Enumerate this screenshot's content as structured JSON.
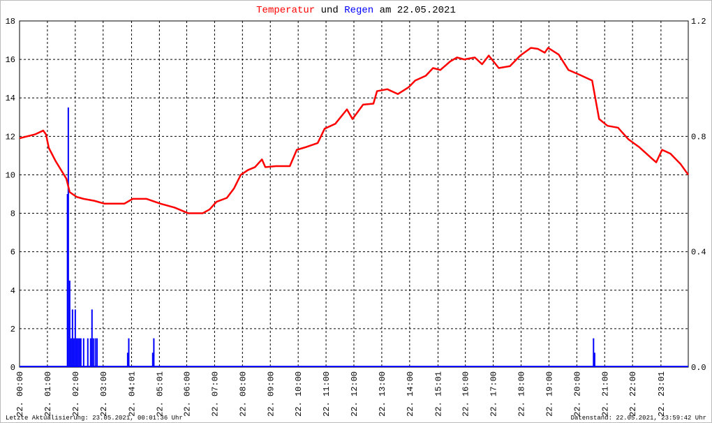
{
  "chart_data": {
    "type": "line",
    "title_connectors": [
      "und",
      "am 22.05.2021"
    ],
    "footer_left": "Letzte Aktualisierung: 23.05.2021, 00:01:36 Uhr",
    "footer_right": "Datenstand: 22.05.2021, 23:59:42 Uhr",
    "xlim": [
      0,
      24
    ],
    "xticks": [
      {
        "value": 0,
        "label": "22. 00:00"
      },
      {
        "value": 1,
        "label": "22. 01:00"
      },
      {
        "value": 2,
        "label": "22. 02:00"
      },
      {
        "value": 3,
        "label": "22. 03:00"
      },
      {
        "value": 4.02,
        "label": "22. 04:01"
      },
      {
        "value": 5.02,
        "label": "22. 05:01"
      },
      {
        "value": 6,
        "label": "22. 06:00"
      },
      {
        "value": 7,
        "label": "22. 07:00"
      },
      {
        "value": 8,
        "label": "22. 08:00"
      },
      {
        "value": 9,
        "label": "22. 09:00"
      },
      {
        "value": 10,
        "label": "22. 10:00"
      },
      {
        "value": 11,
        "label": "22. 11:00"
      },
      {
        "value": 12,
        "label": "22. 12:00"
      },
      {
        "value": 13,
        "label": "22. 13:00"
      },
      {
        "value": 14,
        "label": "22. 14:00"
      },
      {
        "value": 15.02,
        "label": "22. 15:01"
      },
      {
        "value": 16,
        "label": "22. 16:00"
      },
      {
        "value": 17,
        "label": "22. 17:00"
      },
      {
        "value": 18,
        "label": "22. 18:00"
      },
      {
        "value": 19,
        "label": "22. 19:00"
      },
      {
        "value": 20,
        "label": "22. 20:00"
      },
      {
        "value": 21,
        "label": "22. 21:00"
      },
      {
        "value": 22,
        "label": "22. 22:00"
      },
      {
        "value": 23.02,
        "label": "22. 23:01"
      }
    ],
    "ylim": [
      0,
      18
    ],
    "yticks": [
      0,
      2,
      4,
      6,
      8,
      10,
      12,
      14,
      16,
      18
    ],
    "y2lim": [
      0,
      1.2
    ],
    "y2ticks": [
      {
        "value": 0,
        "label": "0.0"
      },
      0.4,
      0.8,
      1.2
    ],
    "grid": true,
    "series": [
      {
        "name": "Temperatur",
        "color": "#ff0000",
        "kind": "line",
        "x": [
          0,
          0.55,
          0.85,
          0.95,
          1.05,
          1.3,
          1.68,
          1.8,
          2.05,
          2.3,
          2.68,
          3.05,
          3.76,
          4.06,
          4.56,
          5.06,
          5.56,
          6.06,
          6.57,
          6.82,
          7.07,
          7.44,
          7.7,
          7.94,
          8.2,
          8.45,
          8.7,
          8.82,
          9.2,
          9.7,
          9.95,
          10.3,
          10.7,
          10.95,
          11.33,
          11.75,
          11.95,
          12.33,
          12.7,
          12.83,
          13.2,
          13.58,
          13.96,
          14.2,
          14.58,
          14.84,
          15.1,
          15.46,
          15.7,
          15.96,
          16.34,
          16.6,
          16.84,
          17.2,
          17.6,
          17.97,
          18.35,
          18.6,
          18.85,
          18.97,
          19.35,
          19.7,
          20.1,
          20.55,
          20.8,
          21.1,
          21.48,
          21.85,
          22.23,
          22.73,
          22.85,
          23.06,
          23.36,
          23.73,
          24
        ],
        "values": [
          11.9,
          12.1,
          12.3,
          12.1,
          11.4,
          10.7,
          9.8,
          9.1,
          8.85,
          8.75,
          8.65,
          8.5,
          8.5,
          8.75,
          8.75,
          8.5,
          8.3,
          8.0,
          8.0,
          8.2,
          8.6,
          8.8,
          9.3,
          10.0,
          10.25,
          10.4,
          10.8,
          10.4,
          10.45,
          10.45,
          11.3,
          11.45,
          11.65,
          12.4,
          12.65,
          13.4,
          12.9,
          13.65,
          13.7,
          14.35,
          14.45,
          14.2,
          14.55,
          14.9,
          15.15,
          15.55,
          15.45,
          15.9,
          16.1,
          16.0,
          16.1,
          15.75,
          16.2,
          15.55,
          15.65,
          16.2,
          16.6,
          16.55,
          16.35,
          16.6,
          16.25,
          15.45,
          15.2,
          14.9,
          12.9,
          12.55,
          12.45,
          11.85,
          11.45,
          10.8,
          10.65,
          11.3,
          11.1,
          10.55,
          10.0
        ]
      },
      {
        "name": "Regen",
        "color": "#0000ff",
        "kind": "bar",
        "axis": "y2",
        "x": [
          1.72,
          1.75,
          1.8,
          1.85,
          1.9,
          1.95,
          2.0,
          2.05,
          2.1,
          2.15,
          2.2,
          2.3,
          2.45,
          2.55,
          2.6,
          2.65,
          2.72,
          2.78,
          3.88,
          3.92,
          4.78,
          4.82,
          20.6,
          20.64
        ],
        "values": [
          0.6,
          0.9,
          0.3,
          0.1,
          0.2,
          0.1,
          0.2,
          0.1,
          0.1,
          0.1,
          0.1,
          0.1,
          0.1,
          0.1,
          0.2,
          0.1,
          0.1,
          0.1,
          0.05,
          0.1,
          0.05,
          0.1,
          0.1,
          0.05
        ]
      }
    ]
  }
}
